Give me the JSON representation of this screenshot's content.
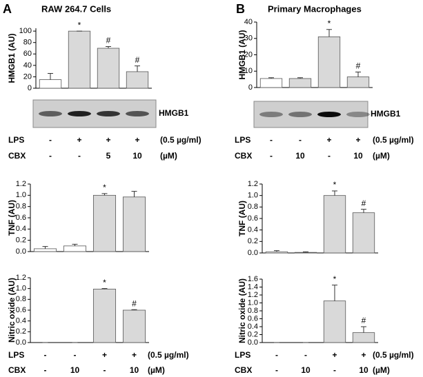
{
  "panels": [
    {
      "label": "A",
      "title": "RAW 264.7 Cells",
      "blot_label": "HMGB1",
      "treatments_top": [
        {
          "name": "LPS",
          "values": [
            "-",
            "+",
            "+",
            "+"
          ],
          "unit": "(0.5 µg/ml)"
        },
        {
          "name": "CBX",
          "values": [
            "-",
            "-",
            "5",
            "10"
          ],
          "unit": "(µM)"
        }
      ],
      "treatments_bottom": [
        {
          "name": "LPS",
          "values": [
            "-",
            "-",
            "+",
            "+"
          ],
          "unit": "(0.5 µg/ml)"
        },
        {
          "name": "CBX",
          "values": [
            "-",
            "10",
            "-",
            "10"
          ],
          "unit": "(µM)"
        }
      ]
    },
    {
      "label": "B",
      "title": "Primary Macrophages",
      "blot_label": "HMGB1",
      "treatments_top": [
        {
          "name": "LPS",
          "values": [
            "-",
            "-",
            "+",
            "+"
          ],
          "unit": "(0.5 µg/ml)"
        },
        {
          "name": "CBX",
          "values": [
            "-",
            "10",
            "-",
            "10"
          ],
          "unit": "(µM)"
        }
      ],
      "treatments_bottom": [
        {
          "name": "LPS",
          "values": [
            "-",
            "-",
            "+",
            "+"
          ],
          "unit": "(0.5 µg/ml)"
        },
        {
          "name": "CBX",
          "values": [
            "-",
            "10",
            "-",
            "10"
          ],
          "unit": "(µM)"
        }
      ]
    }
  ],
  "chart_data": [
    {
      "type": "bar",
      "y_label": "HMGB1 (AU)",
      "categories": [
        null,
        null,
        null,
        null
      ],
      "values": [
        15,
        100,
        70,
        29
      ],
      "errors": [
        11,
        0,
        3,
        10
      ],
      "colors": [
        "#ffffff",
        "#d9d9d9",
        "#d9d9d9",
        "#d9d9d9"
      ],
      "ylim": [
        0,
        105
      ],
      "yticks": [
        0,
        20,
        40,
        60,
        80,
        100
      ],
      "annotations": [
        {
          "index": 1,
          "text": "*"
        },
        {
          "index": 2,
          "text": "#"
        },
        {
          "index": 3,
          "text": "#"
        }
      ]
    },
    {
      "type": "bar",
      "y_label": "HMGB1 (AU)",
      "categories": [
        null,
        null,
        null,
        null
      ],
      "values": [
        5.5,
        5.5,
        31,
        6.5
      ],
      "errors": [
        0.5,
        0.5,
        4.5,
        3
      ],
      "colors": [
        "#ffffff",
        "#d9d9d9",
        "#d9d9d9",
        "#d9d9d9"
      ],
      "ylim": [
        0,
        40
      ],
      "yticks": [
        0,
        10,
        20,
        30,
        40
      ],
      "annotations": [
        {
          "index": 2,
          "text": "*"
        },
        {
          "index": 3,
          "text": "#"
        }
      ]
    },
    {
      "type": "bar",
      "y_label": "TNF (AU)",
      "categories": [
        null,
        null,
        null,
        null
      ],
      "values": [
        0.05,
        0.1,
        1.0,
        0.97
      ],
      "errors": [
        0.04,
        0.03,
        0.03,
        0.1
      ],
      "colors": [
        "#ffffff",
        "#ffffff",
        "#d9d9d9",
        "#d9d9d9"
      ],
      "ylim": [
        0,
        1.2
      ],
      "yticks": [
        {
          "value": 0,
          "label": "0.0"
        },
        0.2,
        0.4,
        0.6,
        0.8,
        {
          "value": 1,
          "label": "1.0"
        },
        1.2
      ],
      "annotations": [
        {
          "index": 2,
          "text": "*"
        }
      ]
    },
    {
      "type": "bar",
      "y_label": "TNF (AU)",
      "categories": [
        null,
        null,
        null,
        null
      ],
      "values": [
        0.02,
        0.01,
        1.0,
        0.7
      ],
      "errors": [
        0.02,
        0.01,
        0.08,
        0.06
      ],
      "colors": [
        "#ffffff",
        "#ffffff",
        "#d9d9d9",
        "#d9d9d9"
      ],
      "ylim": [
        0,
        1.2
      ],
      "yticks": [
        {
          "value": 0,
          "label": "0.0"
        },
        0.2,
        0.4,
        0.6,
        0.8,
        {
          "value": 1,
          "label": "1.0"
        },
        1.2
      ],
      "annotations": [
        {
          "index": 2,
          "text": "*"
        },
        {
          "index": 3,
          "text": "#"
        }
      ]
    },
    {
      "type": "bar",
      "y_label": "Nitric oxide (AU)",
      "categories": [
        null,
        null,
        null,
        null
      ],
      "values": [
        0,
        0,
        0.99,
        0.6
      ],
      "errors": [
        0,
        0,
        0.01,
        0.01
      ],
      "colors": [
        "#ffffff",
        "#ffffff",
        "#d9d9d9",
        "#d9d9d9"
      ],
      "ylim": [
        0,
        1.2
      ],
      "yticks": [
        {
          "value": 0,
          "label": "0.0"
        },
        0.2,
        0.4,
        0.6,
        0.8,
        {
          "value": 1,
          "label": "1.0"
        },
        1.2
      ],
      "annotations": [
        {
          "index": 2,
          "text": "*"
        },
        {
          "index": 3,
          "text": "#"
        }
      ]
    },
    {
      "type": "bar",
      "y_label": "Nitric oxide (AU)",
      "categories": [
        null,
        null,
        null,
        null
      ],
      "values": [
        0,
        0,
        1.05,
        0.25
      ],
      "errors": [
        0,
        0,
        0.4,
        0.15
      ],
      "colors": [
        "#ffffff",
        "#ffffff",
        "#d9d9d9",
        "#d9d9d9"
      ],
      "ylim": [
        0,
        1.6
      ],
      "yticks": [
        {
          "value": 0,
          "label": "0.0"
        },
        0.2,
        0.4,
        0.6,
        0.8,
        {
          "value": 1,
          "label": "1.0"
        },
        1.2,
        1.4,
        1.6
      ],
      "annotations": [
        {
          "index": 2,
          "text": "*"
        },
        {
          "index": 3,
          "text": "#"
        }
      ]
    }
  ]
}
